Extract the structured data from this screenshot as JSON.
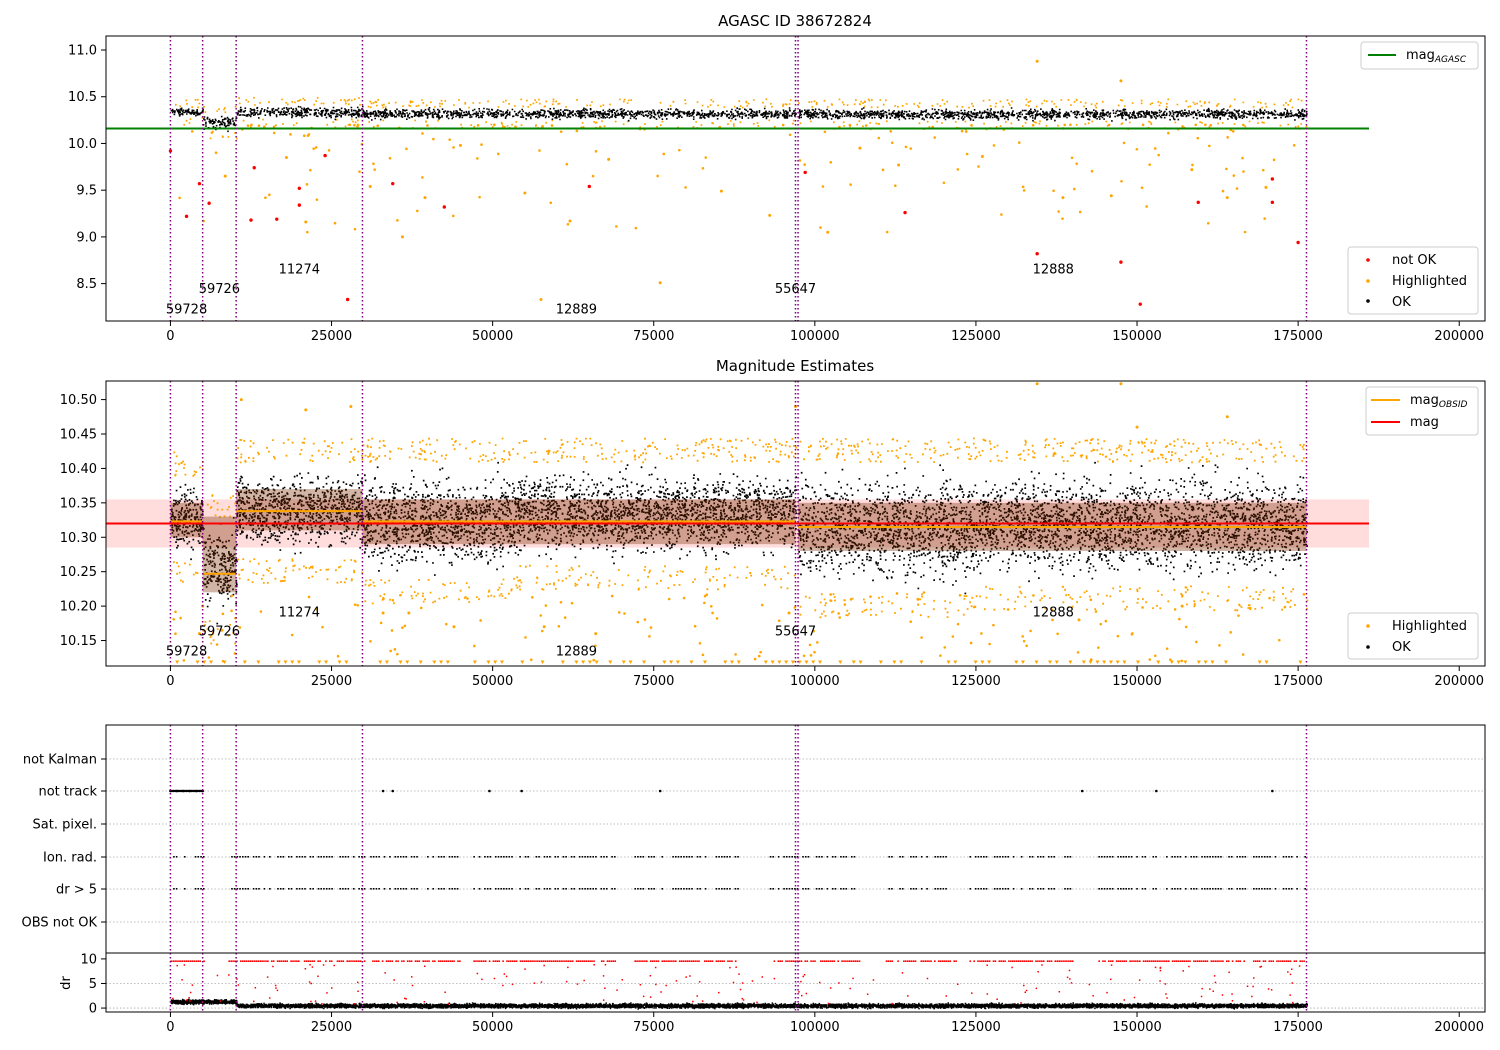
{
  "chart_data": [
    {
      "type": "scatter",
      "title": "AGASC ID 38672824",
      "xlim": [
        -10000,
        204000
      ],
      "ylim": [
        8.1,
        11.15
      ],
      "x_ticks": [
        0,
        25000,
        50000,
        75000,
        100000,
        125000,
        150000,
        175000,
        200000
      ],
      "x_tick_labels": [
        "0",
        "25000",
        "50000",
        "75000",
        "100000",
        "125000",
        "150000",
        "175000",
        "200000"
      ],
      "y_ticks": [
        8.5,
        9.0,
        9.5,
        10.0,
        10.5,
        11.0
      ],
      "y_tick_labels": [
        "8.5",
        "9.0",
        "9.5",
        "10.0",
        "10.5",
        "11.0"
      ],
      "reference_line": {
        "label": "mag_AGASC",
        "y": 10.16,
        "x_range": [
          -10000,
          186000
        ],
        "color": "#008000"
      },
      "obs_boundaries": [
        0,
        5000,
        10200,
        29800,
        97000,
        97400,
        176300
      ],
      "obs_labels": [
        {
          "text": "59728",
          "x": 2500,
          "y": 8.18
        },
        {
          "text": "59726",
          "x": 7600,
          "y": 8.4
        },
        {
          "text": "11274",
          "x": 20000,
          "y": 8.61
        },
        {
          "text": "12889",
          "x": 63000,
          "y": 8.18
        },
        {
          "text": "55647",
          "x": 97000,
          "y": 8.4
        },
        {
          "text": "12888",
          "x": 137000,
          "y": 8.61
        }
      ],
      "bands": [
        {
          "x": [
            0,
            5000
          ],
          "y": [
            10.29,
            10.4
          ]
        },
        {
          "x": [
            5000,
            10200
          ],
          "y": [
            10.14,
            10.33
          ]
        },
        {
          "x": [
            10200,
            29800
          ],
          "y": [
            10.26,
            10.42
          ]
        },
        {
          "x": [
            29800,
            97000
          ],
          "y": [
            10.25,
            10.4
          ]
        },
        {
          "x": [
            97400,
            176300
          ],
          "y": [
            10.24,
            10.4
          ]
        }
      ],
      "scatter_samples": {
        "not_ok": [
          [
            0,
            9.92
          ],
          [
            2500,
            9.22
          ],
          [
            4500,
            9.57
          ],
          [
            6000,
            9.36
          ],
          [
            12500,
            9.18
          ],
          [
            13000,
            9.74
          ],
          [
            16500,
            9.19
          ],
          [
            20000,
            9.52
          ],
          [
            20000,
            9.34
          ],
          [
            24000,
            9.87
          ],
          [
            27500,
            8.33
          ],
          [
            34500,
            9.57
          ],
          [
            42500,
            9.32
          ],
          [
            65000,
            9.54
          ],
          [
            98500,
            9.69
          ],
          [
            114000,
            9.26
          ],
          [
            134500,
            8.82
          ],
          [
            147500,
            8.73
          ],
          [
            150500,
            8.28
          ],
          [
            159500,
            9.37
          ],
          [
            171000,
            9.37
          ],
          [
            171000,
            9.62
          ],
          [
            175000,
            8.94
          ]
        ],
        "highlighted": [
          [
            134500,
            10.88
          ],
          [
            147500,
            10.67
          ],
          [
            36000,
            9.0
          ],
          [
            57500,
            8.33
          ],
          [
            76000,
            8.51
          ],
          [
            93000,
            9.23
          ],
          [
            102000,
            9.05
          ],
          [
            62000,
            9.17
          ],
          [
            21000,
            9.16
          ],
          [
            39500,
            9.42
          ],
          [
            55000,
            9.47
          ],
          [
            85500,
            9.49
          ],
          [
            146000,
            9.44
          ],
          [
            138500,
            9.42
          ],
          [
            164000,
            9.42
          ],
          [
            31000,
            9.54
          ],
          [
            170000,
            9.53
          ],
          [
            8500,
            9.65
          ],
          [
            107000,
            9.95
          ],
          [
            158500,
            9.72
          ],
          [
            126000,
            9.86
          ],
          [
            18000,
            9.85
          ],
          [
            113000,
            9.77
          ],
          [
            45000,
            9.98
          ],
          [
            68000,
            9.83
          ]
        ],
        "legend": [
          "not OK",
          "Highlighted",
          "OK"
        ],
        "legend_colors": [
          "#ff0000",
          "#ffa500",
          "#000000"
        ]
      }
    },
    {
      "type": "scatter",
      "title": "Magnitude Estimates",
      "xlim": [
        -10000,
        204000
      ],
      "ylim": [
        10.113,
        10.527
      ],
      "x_ticks": [
        0,
        25000,
        50000,
        75000,
        100000,
        125000,
        150000,
        175000,
        200000
      ],
      "x_tick_labels": [
        "0",
        "25000",
        "50000",
        "75000",
        "100000",
        "125000",
        "150000",
        "175000",
        "200000"
      ],
      "y_ticks": [
        10.15,
        10.2,
        10.25,
        10.3,
        10.35,
        10.4,
        10.45,
        10.5
      ],
      "y_tick_labels": [
        "10.15",
        "10.20",
        "10.25",
        "10.30",
        "10.35",
        "10.40",
        "10.45",
        "10.50"
      ],
      "mag_line": {
        "label": "mag",
        "y": 10.32,
        "x_range": [
          -10000,
          186000
        ],
        "band": [
          10.285,
          10.355
        ],
        "color": "#ff0000"
      },
      "mag_obsid_segments": [
        {
          "x": [
            0,
            5000
          ],
          "y": 10.323,
          "band": [
            10.3,
            10.35
          ]
        },
        {
          "x": [
            5000,
            10200
          ],
          "y": 10.247,
          "band": [
            10.22,
            10.33
          ]
        },
        {
          "x": [
            10200,
            29800
          ],
          "y": 10.338,
          "band": [
            10.31,
            10.37
          ]
        },
        {
          "x": [
            29800,
            97000
          ],
          "y": 10.323,
          "band": [
            10.29,
            10.355
          ]
        },
        {
          "x": [
            97400,
            176300
          ],
          "y": 10.315,
          "band": [
            10.28,
            10.35
          ]
        }
      ],
      "mag_obsid_label": "mag_OBSID",
      "obs_labels": [
        {
          "text": "59728",
          "x": 2500,
          "y": 10.128
        },
        {
          "text": "59726",
          "x": 7600,
          "y": 10.157
        },
        {
          "text": "11274",
          "x": 20000,
          "y": 10.185
        },
        {
          "text": "12889",
          "x": 63000,
          "y": 10.128
        },
        {
          "text": "55647",
          "x": 97000,
          "y": 10.157
        },
        {
          "text": "12888",
          "x": 137000,
          "y": 10.185
        }
      ],
      "bands": [
        {
          "x": [
            0,
            5000
          ],
          "y": [
            10.27,
            10.39
          ]
        },
        {
          "x": [
            5000,
            10200
          ],
          "y": [
            10.18,
            10.33
          ]
        },
        {
          "x": [
            10200,
            29800
          ],
          "y": [
            10.27,
            10.41
          ]
        },
        {
          "x": [
            29800,
            53000
          ],
          "y": [
            10.24,
            10.41
          ]
        },
        {
          "x": [
            53000,
            97000
          ],
          "y": [
            10.26,
            10.41
          ]
        },
        {
          "x": [
            97400,
            125000
          ],
          "y": [
            10.22,
            10.41
          ]
        },
        {
          "x": [
            125000,
            176300
          ],
          "y": [
            10.23,
            10.41
          ]
        }
      ],
      "scatter_samples": {
        "highlighted": [
          [
            134500,
            10.523
          ],
          [
            147500,
            10.523
          ],
          [
            11000,
            10.5
          ],
          [
            28000,
            10.49
          ],
          [
            21000,
            10.485
          ],
          [
            97000,
            10.49
          ],
          [
            164000,
            10.475
          ],
          [
            150000,
            10.46
          ],
          [
            33000,
            10.19
          ],
          [
            37000,
            10.19
          ],
          [
            58000,
            10.17
          ],
          [
            96000,
            10.19
          ],
          [
            116000,
            10.21
          ],
          [
            141000,
            10.18
          ],
          [
            157000,
            10.2
          ],
          [
            5000,
            10.2
          ],
          [
            4500,
            10.16
          ],
          [
            8000,
            10.165
          ],
          [
            44000,
            10.17
          ],
          [
            66000,
            10.16
          ]
        ],
        "legend": [
          "Highlighted",
          "OK"
        ],
        "legend_colors": [
          "#ffa500",
          "#000000"
        ]
      }
    },
    {
      "type": "scatter",
      "xlim": [
        -10000,
        204000
      ],
      "categories": [
        "not Kalman",
        "not track",
        "Sat. pixel.",
        "Ion. rad.",
        "dr > 5",
        "OBS not OK"
      ],
      "flags": {
        "not_track_x": [
          0,
          1000,
          2000,
          3000,
          4000,
          5000,
          33000,
          34500,
          49500,
          54500,
          76000,
          141500,
          153000,
          171000
        ],
        "ion_rad_segments": [
          [
            0,
            5200
          ],
          [
            9000,
            30000
          ],
          [
            31000,
            45000
          ],
          [
            47000,
            69000
          ],
          [
            72000,
            88000
          ],
          [
            93000,
            107000
          ],
          [
            111000,
            122000
          ],
          [
            124000,
            140000
          ],
          [
            144000,
            167000
          ],
          [
            168000,
            176000
          ]
        ]
      },
      "dr_panel": {
        "ylabel": "dr",
        "y_ticks": [
          0,
          5,
          10
        ],
        "y_tick_labels": [
          "0",
          "5",
          "10"
        ],
        "ylim": [
          -0.8,
          11.2
        ]
      },
      "x_ticks": [
        0,
        25000,
        50000,
        75000,
        100000,
        125000,
        150000,
        175000,
        200000
      ],
      "x_tick_labels": [
        "0",
        "25000",
        "50000",
        "75000",
        "100000",
        "125000",
        "150000",
        "175000",
        "200000"
      ]
    }
  ]
}
